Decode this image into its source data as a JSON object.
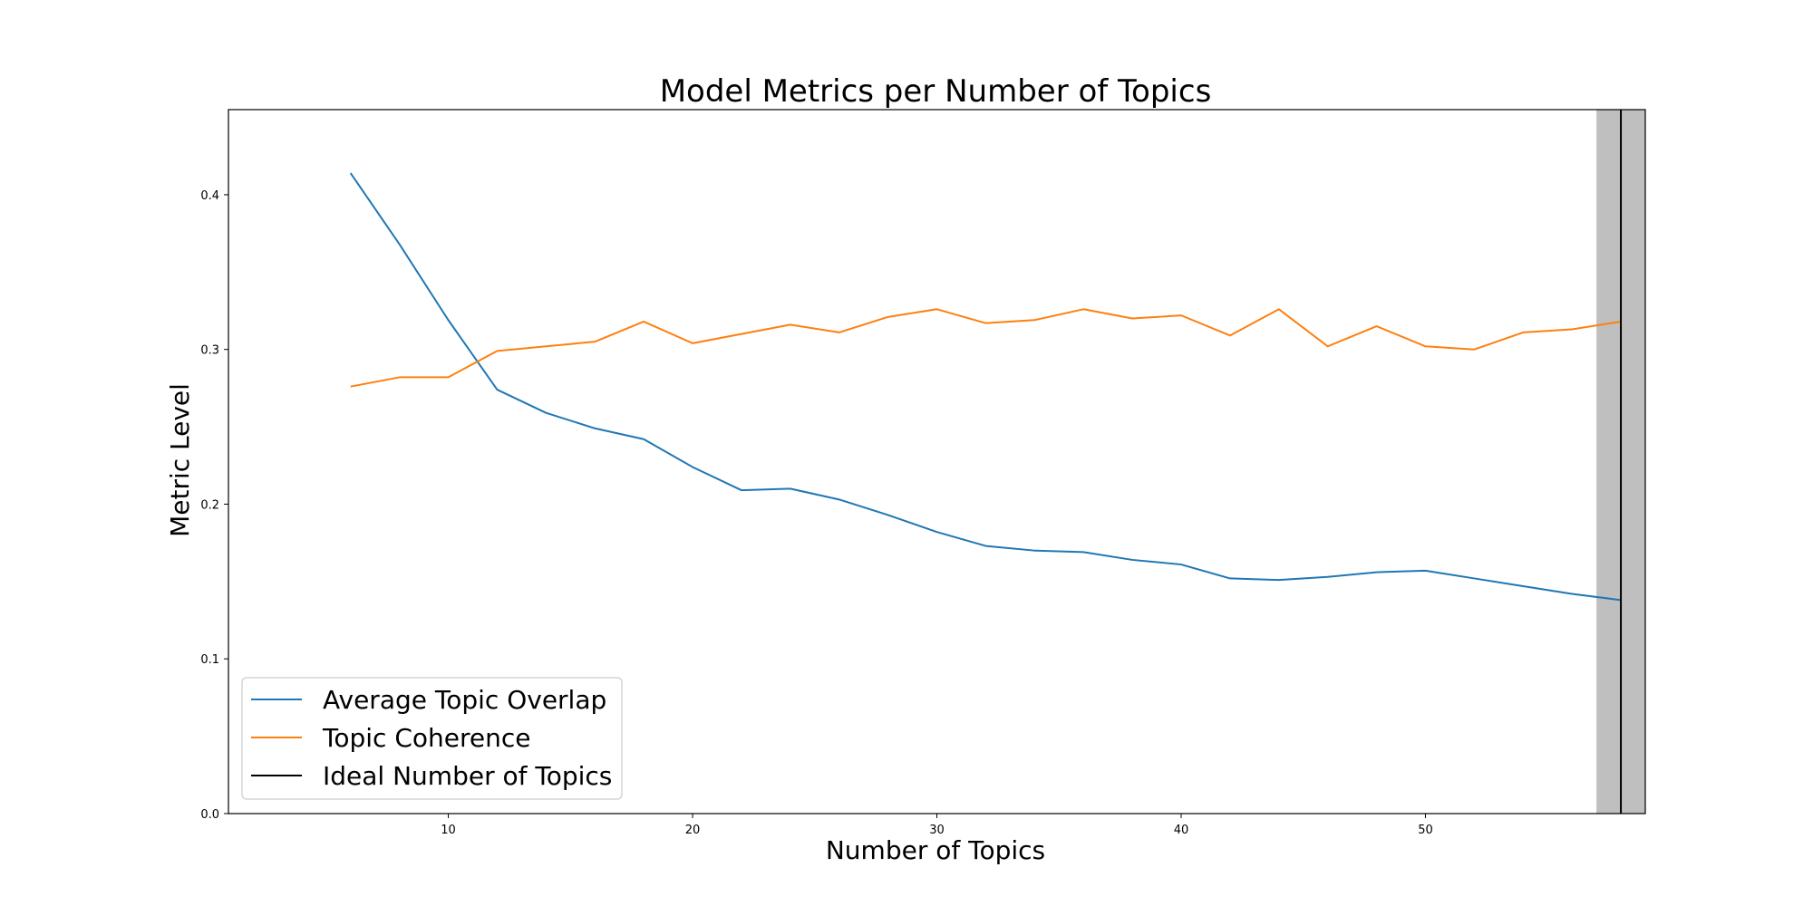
{
  "chart_data": {
    "type": "line",
    "title": "Model Metrics per Number of Topics",
    "xlabel": "Number of Topics",
    "ylabel": "Metric Level",
    "xlim": [
      1,
      59
    ],
    "ylim": [
      0,
      0.455
    ],
    "xticks": [
      10,
      20,
      30,
      40,
      50
    ],
    "yticks": [
      0.0,
      0.1,
      0.2,
      0.3,
      0.4
    ],
    "xtick_labels": [
      "10",
      "20",
      "30",
      "40",
      "50"
    ],
    "ytick_labels": [
      "0.0",
      "0.1",
      "0.2",
      "0.3",
      "0.4"
    ],
    "grid": false,
    "legend_position": "lower-left",
    "x": [
      6,
      8,
      10,
      12,
      14,
      16,
      18,
      20,
      22,
      24,
      26,
      28,
      30,
      32,
      34,
      36,
      38,
      40,
      42,
      44,
      46,
      48,
      50,
      52,
      54,
      56,
      58
    ],
    "series": [
      {
        "name": "Average Topic Overlap",
        "color": "#1f77b4",
        "values": [
          0.414,
          0.368,
          0.319,
          0.274,
          0.259,
          0.249,
          0.242,
          0.224,
          0.209,
          0.21,
          0.203,
          0.193,
          0.182,
          0.173,
          0.17,
          0.169,
          0.164,
          0.161,
          0.152,
          0.151,
          0.153,
          0.156,
          0.157,
          0.152,
          0.147,
          0.142,
          0.138
        ]
      },
      {
        "name": "Topic Coherence",
        "color": "#ff7f0e",
        "values": [
          0.276,
          0.282,
          0.282,
          0.299,
          0.302,
          0.305,
          0.318,
          0.304,
          0.31,
          0.316,
          0.311,
          0.321,
          0.326,
          0.317,
          0.319,
          0.326,
          0.32,
          0.322,
          0.309,
          0.326,
          0.302,
          0.315,
          0.302,
          0.3,
          0.311,
          0.313,
          0.318
        ]
      }
    ],
    "ideal": {
      "name": "Ideal Number of Topics",
      "color": "#000000",
      "x": 58,
      "band": [
        57,
        59
      ],
      "band_color": "#bfbfbf"
    }
  }
}
